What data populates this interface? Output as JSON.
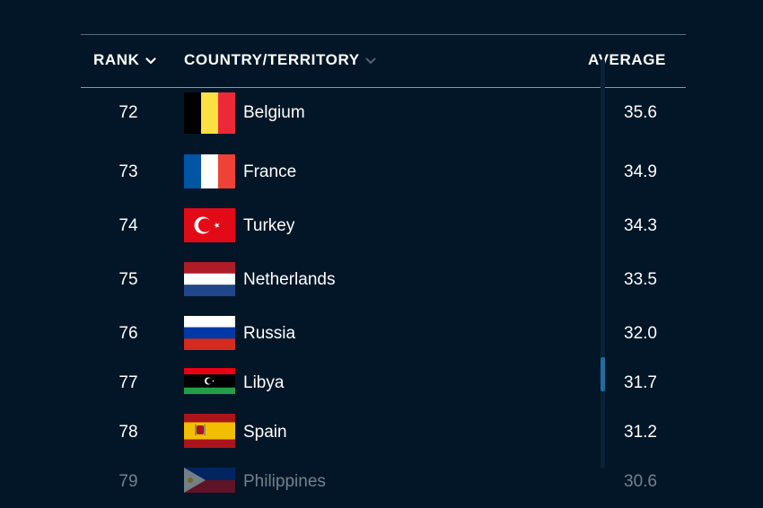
{
  "header": {
    "rank_label": "RANK",
    "country_label": "COUNTRY/TERRITORY",
    "average_label": "AVERAGE"
  },
  "rows": [
    {
      "rank": "72",
      "country": "Belgium",
      "average": "35.6",
      "flag_icon": "belgium-flag-icon"
    },
    {
      "rank": "73",
      "country": "France",
      "average": "34.9",
      "flag_icon": "france-flag-icon"
    },
    {
      "rank": "74",
      "country": "Turkey",
      "average": "34.3",
      "flag_icon": "turkey-flag-icon"
    },
    {
      "rank": "75",
      "country": "Netherlands",
      "average": "33.5",
      "flag_icon": "netherlands-flag-icon"
    },
    {
      "rank": "76",
      "country": "Russia",
      "average": "32.0",
      "flag_icon": "russia-flag-icon"
    },
    {
      "rank": "77",
      "country": "Libya",
      "average": "31.7",
      "flag_icon": "libya-flag-icon"
    },
    {
      "rank": "78",
      "country": "Spain",
      "average": "31.2",
      "flag_icon": "spain-flag-icon"
    },
    {
      "rank": "79",
      "country": "Philippines",
      "average": "30.6",
      "flag_icon": "philippines-flag-icon"
    }
  ],
  "colors": {
    "background": "#021627",
    "divider": "#8a98a4",
    "scrollbar_thumb": "#1d6e9e"
  }
}
